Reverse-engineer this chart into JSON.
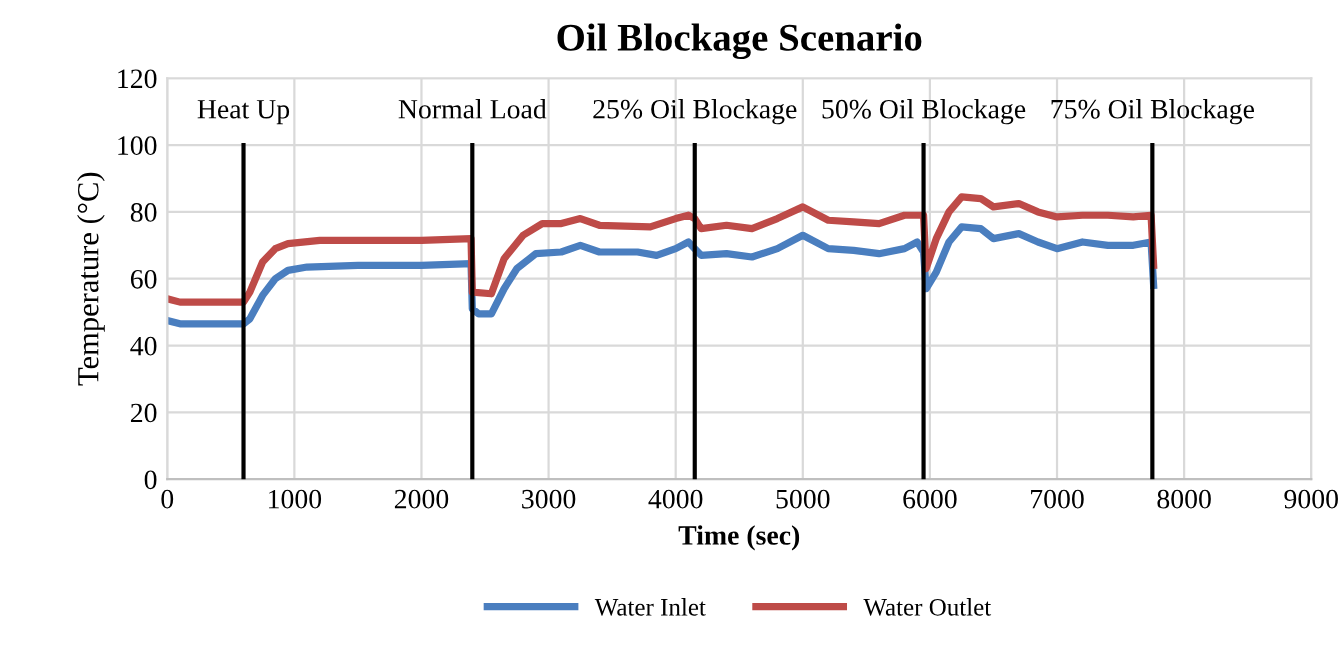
{
  "chart_data": {
    "type": "line",
    "title": "Oil Blockage Scenario",
    "xlabel": "Time (sec)",
    "ylabel": "Temperature (°C)",
    "xlim": [
      0,
      9000
    ],
    "xticks": [
      0,
      1000,
      2000,
      3000,
      4000,
      5000,
      6000,
      7000,
      8000,
      9000
    ],
    "ylim": [
      0,
      120
    ],
    "yticks": [
      0,
      20,
      40,
      60,
      80,
      100,
      120
    ],
    "grid": true,
    "legend": "bottom",
    "marker": "none",
    "line_style": "solid",
    "series": [
      {
        "name": "Water Inlet",
        "color": "#4a7ebf",
        "x": [
          0,
          100,
          600,
          650,
          750,
          850,
          950,
          1100,
          1500,
          2000,
          2390,
          2400,
          2450,
          2550,
          2650,
          2750,
          2900,
          3100,
          3250,
          3400,
          3700,
          3850,
          4000,
          4100,
          4150,
          4200,
          4400,
          4600,
          4800,
          5000,
          5200,
          5400,
          5600,
          5800,
          5900,
          5950,
          5970,
          6050,
          6150,
          6250,
          6400,
          6500,
          6700,
          6850,
          7000,
          7200,
          7400,
          7600,
          7740,
          7760
        ],
        "values": [
          47.5,
          46.5,
          46.5,
          48,
          55,
          60,
          62.5,
          63.5,
          64,
          64,
          64.5,
          51,
          49.5,
          49.5,
          57,
          63,
          67.5,
          68,
          70,
          68,
          68,
          67,
          69,
          71,
          69,
          67,
          67.5,
          66.5,
          69,
          73,
          69,
          68.5,
          67.5,
          69,
          71,
          68,
          57,
          62,
          71,
          75.5,
          75,
          72,
          73.5,
          71,
          69,
          71,
          70,
          70,
          71,
          58
        ]
      },
      {
        "name": "Water Outlet",
        "color": "#be4b48",
        "x": [
          0,
          100,
          600,
          650,
          750,
          850,
          950,
          1200,
          2000,
          2390,
          2400,
          2550,
          2650,
          2800,
          2950,
          3100,
          3250,
          3400,
          3800,
          4000,
          4100,
          4150,
          4200,
          4400,
          4600,
          4800,
          5000,
          5200,
          5400,
          5600,
          5800,
          5950,
          5970,
          6050,
          6150,
          6250,
          6400,
          6500,
          6700,
          6850,
          7000,
          7200,
          7400,
          7600,
          7740,
          7760
        ],
        "values": [
          54,
          53,
          53,
          56,
          65,
          69,
          70.5,
          71.5,
          71.5,
          72,
          56,
          55.5,
          66,
          73,
          76.5,
          76.5,
          78,
          76,
          75.5,
          78,
          79,
          78,
          75,
          76,
          75,
          78,
          81.5,
          77.5,
          77,
          76.5,
          79,
          79,
          63,
          72,
          80,
          84.5,
          84,
          81.5,
          82.5,
          80,
          78.5,
          79,
          79,
          78.5,
          79,
          64
        ]
      }
    ],
    "ref_lines": [
      {
        "axis": "x",
        "value": 600,
        "label": "Heat Up",
        "color": "#000000"
      },
      {
        "axis": "x",
        "value": 2400,
        "label": "Normal Load",
        "color": "#000000"
      },
      {
        "axis": "x",
        "value": 4150,
        "label": "25% Oil Blockage",
        "color": "#000000"
      },
      {
        "axis": "x",
        "value": 5950,
        "label": "50% Oil Blockage",
        "color": "#000000"
      },
      {
        "axis": "x",
        "value": 7750,
        "label": "75% Oil Blockage",
        "color": "#000000"
      }
    ]
  }
}
